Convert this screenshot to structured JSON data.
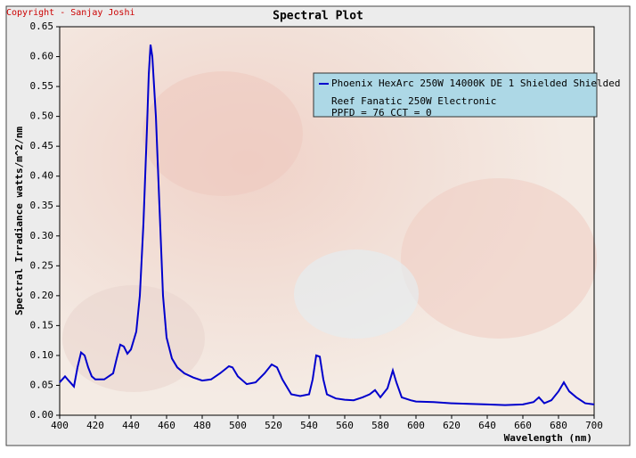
{
  "chart_data": {
    "type": "line",
    "title": "Spectral Plot",
    "copyright": "Copyright - Sanjay Joshi",
    "x_label": "Wavelength (nm)",
    "y_label": "Spectral Irradiance watts/m^2/nm",
    "legend_lines": [
      "Reef Fanatic 250W Electronic",
      "PPFD = 76  CCT = 0"
    ],
    "xlim": [
      400,
      700
    ],
    "ylim": [
      0,
      0.65
    ],
    "xticks": [
      400,
      420,
      440,
      460,
      480,
      500,
      520,
      540,
      560,
      580,
      600,
      620,
      640,
      660,
      680,
      700
    ],
    "yticks": [
      {
        "value": 0,
        "label": "0.00"
      },
      0.05,
      {
        "value": 0.1,
        "label": "0.10"
      },
      0.15,
      {
        "value": 0.2,
        "label": "0.20"
      },
      0.25,
      {
        "value": 0.3,
        "label": "0.30"
      },
      0.35,
      {
        "value": 0.4,
        "label": "0.40"
      },
      0.45,
      {
        "value": 0.5,
        "label": "0.50"
      },
      0.55,
      {
        "value": 0.6,
        "label": "0.60"
      },
      0.65
    ],
    "grid": false,
    "x": [
      400,
      403,
      405,
      408,
      410,
      412,
      414,
      416,
      418,
      420,
      425,
      430,
      432,
      434,
      436,
      438,
      440,
      443,
      445,
      447,
      449,
      450,
      451,
      452,
      454,
      456,
      458,
      460,
      463,
      466,
      470,
      475,
      480,
      485,
      490,
      495,
      497,
      500,
      505,
      510,
      515,
      519,
      522,
      525,
      530,
      535,
      540,
      542,
      544,
      546,
      548,
      550,
      555,
      560,
      565,
      570,
      574,
      577,
      580,
      584,
      587,
      589,
      592,
      597,
      600,
      610,
      620,
      630,
      640,
      650,
      660,
      666,
      669,
      672,
      676,
      680,
      683,
      686,
      690,
      695,
      700
    ],
    "series": [
      {
        "name": "Phoenix HexArc 250W 14000K DE 1 Shielded Shielded",
        "color": "#0000cc",
        "values": [
          0.055,
          0.065,
          0.058,
          0.048,
          0.08,
          0.105,
          0.1,
          0.08,
          0.065,
          0.06,
          0.06,
          0.07,
          0.095,
          0.118,
          0.115,
          0.103,
          0.11,
          0.14,
          0.2,
          0.32,
          0.48,
          0.57,
          0.62,
          0.6,
          0.5,
          0.35,
          0.2,
          0.13,
          0.095,
          0.08,
          0.07,
          0.063,
          0.058,
          0.06,
          0.07,
          0.082,
          0.08,
          0.065,
          0.052,
          0.055,
          0.07,
          0.085,
          0.08,
          0.06,
          0.035,
          0.032,
          0.035,
          0.06,
          0.1,
          0.098,
          0.06,
          0.035,
          0.028,
          0.026,
          0.025,
          0.03,
          0.035,
          0.042,
          0.03,
          0.045,
          0.075,
          0.055,
          0.03,
          0.025,
          0.023,
          0.022,
          0.02,
          0.019,
          0.018,
          0.017,
          0.018,
          0.022,
          0.03,
          0.02,
          0.025,
          0.04,
          0.055,
          0.04,
          0.03,
          0.02,
          0.018
        ]
      }
    ]
  }
}
